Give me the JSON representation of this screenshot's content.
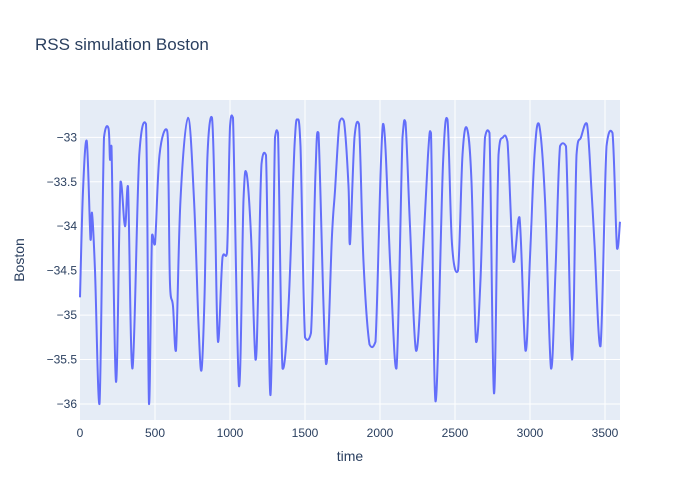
{
  "chart_data": {
    "type": "line",
    "title": "RSS simulation Boston",
    "xlabel": "time",
    "ylabel": "Boston",
    "xlim": [
      0,
      3600
    ],
    "ylim": [
      -36.18,
      -32.58
    ],
    "x_ticks": [
      0,
      500,
      1000,
      1500,
      2000,
      2500,
      3000,
      3500
    ],
    "x_tick_labels": [
      "0",
      "500",
      "1000",
      "1500",
      "2000",
      "2500",
      "3000",
      "3500"
    ],
    "y_ticks": [
      -33,
      -33.5,
      -34,
      -34.5,
      -35,
      -35.5,
      -36
    ],
    "y_tick_labels": [
      "−33",
      "−33.5",
      "−34",
      "−34.5",
      "−35",
      "−35.5",
      "−36"
    ],
    "grid": true,
    "colors": {
      "line": "#636efa",
      "plot_bg": "#e5ecf6",
      "grid": "#ffffff",
      "text": "#2a3f5f"
    },
    "series": [
      {
        "x": [
          0,
          20,
          45,
          70,
          80,
          100,
          130,
          160,
          190,
          200,
          210,
          240,
          270,
          300,
          320,
          350,
          395,
          440,
          460,
          480,
          500,
          530,
          580,
          590,
          600,
          620,
          640,
          670,
          720,
          760,
          790,
          810,
          830,
          850,
          880,
          900,
          920,
          950,
          980,
          1000,
          1020,
          1060,
          1090,
          1110,
          1140,
          1170,
          1190,
          1210,
          1240,
          1270,
          1300,
          1320,
          1350,
          1390,
          1430,
          1450,
          1470,
          1500,
          1540,
          1570,
          1590,
          1640,
          1680,
          1700,
          1730,
          1760,
          1790,
          1800,
          1830,
          1860,
          1890,
          1930,
          1970,
          2020,
          2070,
          2110,
          2150,
          2170,
          2200,
          2240,
          2280,
          2320,
          2340,
          2370,
          2420,
          2450,
          2480,
          2520,
          2550,
          2580,
          2610,
          2640,
          2670,
          2700,
          2730,
          2760,
          2790,
          2820,
          2850,
          2890,
          2930,
          2970,
          3000,
          3030,
          3060,
          3100,
          3140,
          3170,
          3200,
          3240,
          3280,
          3310,
          3340,
          3380,
          3410,
          3430,
          3470,
          3510,
          3550,
          3580,
          3600
        ],
        "y": [
          -34.8,
          -33.6,
          -33.04,
          -34.15,
          -33.85,
          -34.5,
          -36.0,
          -33.0,
          -32.9,
          -33.25,
          -33.1,
          -35.75,
          -33.5,
          -34.0,
          -33.55,
          -35.6,
          -33.2,
          -32.85,
          -36.0,
          -34.1,
          -34.2,
          -33.2,
          -32.92,
          -33.5,
          -34.65,
          -34.9,
          -35.4,
          -33.7,
          -32.78,
          -33.7,
          -35.1,
          -35.62,
          -34.8,
          -33.2,
          -32.78,
          -33.85,
          -35.3,
          -34.35,
          -34.3,
          -32.88,
          -32.78,
          -35.8,
          -33.7,
          -33.4,
          -34.1,
          -35.5,
          -34.6,
          -33.3,
          -33.2,
          -35.9,
          -33.0,
          -32.95,
          -35.6,
          -34.9,
          -33.1,
          -32.8,
          -33.1,
          -35.25,
          -35.2,
          -33.4,
          -32.95,
          -35.55,
          -34.1,
          -33.6,
          -32.83,
          -32.82,
          -33.55,
          -34.2,
          -33.0,
          -32.85,
          -34.4,
          -35.33,
          -35.3,
          -32.85,
          -34.5,
          -35.6,
          -33.0,
          -32.83,
          -34.0,
          -35.4,
          -34.5,
          -33.2,
          -32.95,
          -35.97,
          -33.3,
          -32.8,
          -34.2,
          -34.5,
          -33.2,
          -32.9,
          -33.5,
          -35.3,
          -34.6,
          -33.0,
          -32.95,
          -35.88,
          -33.2,
          -33.0,
          -33.05,
          -34.4,
          -33.9,
          -35.4,
          -34.35,
          -33.2,
          -32.85,
          -33.7,
          -35.6,
          -34.5,
          -33.1,
          -33.1,
          -35.5,
          -33.2,
          -33.0,
          -32.85,
          -33.6,
          -34.2,
          -35.35,
          -33.1,
          -32.95,
          -34.25,
          -33.95
        ]
      }
    ]
  }
}
